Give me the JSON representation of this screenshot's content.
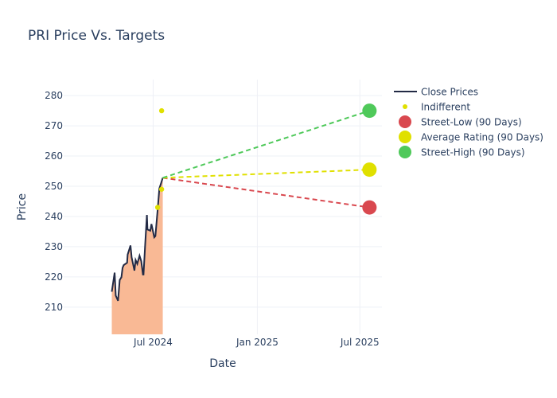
{
  "chart_data": {
    "type": "line",
    "title": "PRI Price Vs. Targets",
    "xlabel": "Date",
    "ylabel": "Price",
    "xlim": [
      "2024-01-25",
      "2025-08-09"
    ],
    "ylim": [
      201,
      285.3
    ],
    "grid": true,
    "legend_placement": "top-right",
    "x_ticks": [
      {
        "date": "2024-07-01",
        "label": "Jul 2024"
      },
      {
        "date": "2025-01-01",
        "label": "Jan 2025"
      },
      {
        "date": "2025-07-01",
        "label": "Jul 2025"
      }
    ],
    "y_ticks": [
      210,
      220,
      230,
      240,
      250,
      260,
      270,
      280
    ],
    "colors": {
      "close": "#222a45",
      "fill": "#f9b995",
      "low": "#d9484f",
      "avg": "#e0e000",
      "high": "#4fc95a",
      "indifferent": "#e0e000"
    },
    "series": [
      {
        "name": "Close Prices",
        "type": "line",
        "x": [
          "2024-04-19",
          "2024-04-24",
          "2024-04-26",
          "2024-04-30",
          "2024-05-03",
          "2024-05-06",
          "2024-05-08",
          "2024-05-10",
          "2024-05-16",
          "2024-05-17",
          "2024-05-22",
          "2024-05-24",
          "2024-05-29",
          "2024-05-31",
          "2024-06-03",
          "2024-06-07",
          "2024-06-10",
          "2024-06-13",
          "2024-06-14",
          "2024-06-17",
          "2024-06-20",
          "2024-06-21",
          "2024-06-26",
          "2024-06-28",
          "2024-07-03",
          "2024-07-05",
          "2024-07-09",
          "2024-07-12",
          "2024-07-15",
          "2024-07-18"
        ],
        "y": [
          215.1,
          221.4,
          213.8,
          212.1,
          219.0,
          219.9,
          223.0,
          223.9,
          224.7,
          227.4,
          230.4,
          226.5,
          222.1,
          225.6,
          224.3,
          227.0,
          225.2,
          220.8,
          220.8,
          230.9,
          240.5,
          235.7,
          235.3,
          237.5,
          233.1,
          233.5,
          242.3,
          249.3,
          251.0,
          252.8
        ]
      },
      {
        "name": "Indifferent",
        "type": "scatter",
        "x": [
          "2024-07-09",
          "2024-07-16",
          "2024-07-16"
        ],
        "y": [
          243,
          249,
          275
        ]
      },
      {
        "name": "Street-Low (90 Days)",
        "type": "target",
        "x": [
          "2024-07-18",
          "2025-07-18"
        ],
        "y": [
          252.8,
          243
        ]
      },
      {
        "name": "Average Rating (90 Days)",
        "type": "target",
        "x": [
          "2024-07-18",
          "2025-07-18"
        ],
        "y": [
          252.8,
          255.5
        ]
      },
      {
        "name": "Street-High (90 Days)",
        "type": "target",
        "x": [
          "2024-07-18",
          "2025-07-18"
        ],
        "y": [
          252.8,
          275
        ]
      }
    ]
  }
}
